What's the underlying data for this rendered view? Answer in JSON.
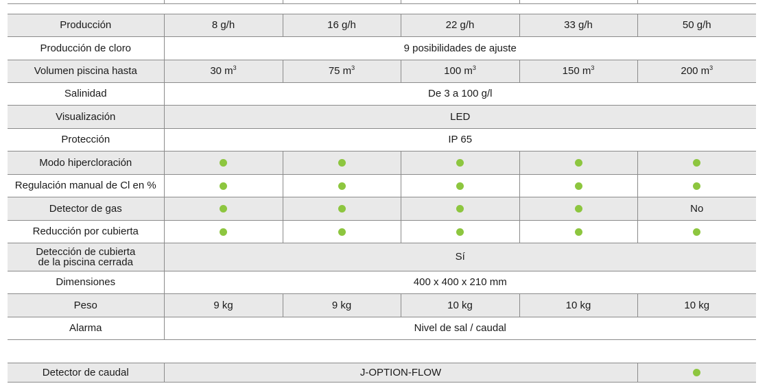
{
  "accent_color": "#8dc63f",
  "rows": [
    {
      "label": "Producción",
      "cells": [
        "8 g/h",
        "16 g/h",
        "22 g/h",
        "33 g/h",
        "50 g/h"
      ]
    },
    {
      "label": "Producción de cloro",
      "span": "9 posibilidades de ajuste"
    },
    {
      "label": "Volumen piscina hasta",
      "cells": [
        "30 m",
        "75 m",
        "100 m",
        "150 m",
        "200 m"
      ],
      "unit_sup": "3"
    },
    {
      "label": "Salinidad",
      "span": "De 3 a 100 g/l"
    },
    {
      "label": "Visualización",
      "span": "LED"
    },
    {
      "label": "Protección",
      "span": "IP 65"
    },
    {
      "label": "Modo hipercloración",
      "dots": [
        true,
        true,
        true,
        true,
        true
      ]
    },
    {
      "label": "Regulación manual de Cl en %",
      "dots": [
        true,
        true,
        true,
        true,
        true
      ]
    },
    {
      "label": "Detector de gas",
      "dots": [
        true,
        true,
        true,
        true,
        false
      ],
      "last_text": "No"
    },
    {
      "label": "Reducción por cubierta",
      "dots": [
        true,
        true,
        true,
        true,
        true
      ]
    },
    {
      "label_line1": "Detección de cubierta",
      "label_line2": "de la piscina cerrada",
      "span": "Sí"
    },
    {
      "label": "Dimensiones",
      "span": "400 x 400 x 210 mm"
    },
    {
      "label": "Peso",
      "cells": [
        "9 kg",
        "9 kg",
        "10 kg",
        "10 kg",
        "10 kg"
      ]
    },
    {
      "label": "Alarma",
      "span": "Nivel de sal / caudal"
    }
  ],
  "extra": {
    "label": "Detector de caudal",
    "option": "J-OPTION-FLOW",
    "dot": true
  }
}
